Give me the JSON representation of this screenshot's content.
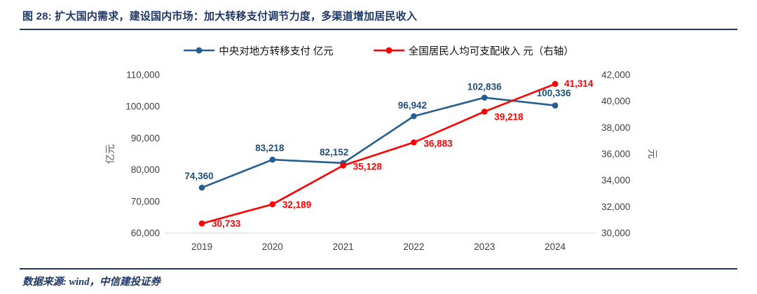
{
  "header": {
    "title": "图 28: 扩大国内需求，建设国内市场：加大转移支付调节力度，多渠道增加居民收入"
  },
  "chart_data": {
    "type": "line",
    "title": "",
    "categories": [
      "2019",
      "2020",
      "2021",
      "2022",
      "2023",
      "2024"
    ],
    "series": [
      {
        "name": "中央对地方转移支付 亿元",
        "axis": "left",
        "color": "#255E91",
        "label_color": "#1F4E79",
        "values": [
          74360,
          83218,
          82152,
          96942,
          102836,
          100336
        ]
      },
      {
        "name": "全国居民人均可支配收入 元（右轴）",
        "axis": "right",
        "color": "#FF0000",
        "label_color": "#FF0000",
        "values": [
          30733,
          32189,
          35128,
          36883,
          39218,
          41314
        ]
      }
    ],
    "left_axis": {
      "label": "亿元",
      "min": 60000,
      "max": 110000,
      "step": 10000
    },
    "right_axis": {
      "label": "元",
      "min": 30000,
      "max": 42000,
      "step": 2000
    },
    "legend_position": "top",
    "grid": false
  },
  "footer": {
    "source": "数据来源: wind，中信建投证券"
  }
}
